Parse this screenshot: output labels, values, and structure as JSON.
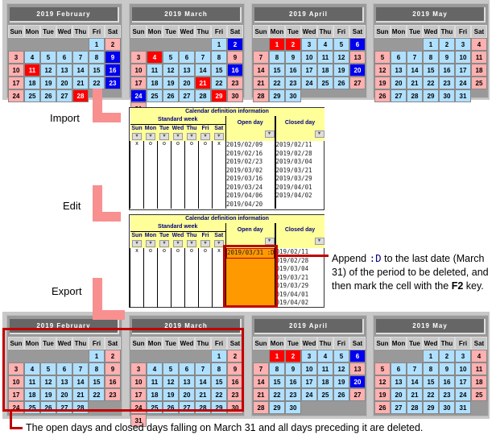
{
  "calendar": {
    "weekdays": [
      "Sun",
      "Mon",
      "Tue",
      "Wed",
      "Thu",
      "Fri",
      "Sat"
    ],
    "colors": {
      "weekday": "#b0e0ff",
      "weekend": "#ffb0b0",
      "closed": "#ff0000",
      "open": "#0000ee"
    },
    "before": [
      {
        "title": "2019 February",
        "first_weekday": 5,
        "days": 28,
        "closed": [
          11,
          28
        ],
        "open": [
          9,
          16,
          23
        ]
      },
      {
        "title": "2019 March",
        "first_weekday": 5,
        "days": 31,
        "closed": [
          4,
          21,
          29
        ],
        "open": [
          2,
          16,
          24
        ]
      },
      {
        "title": "2019 April",
        "first_weekday": 1,
        "days": 30,
        "closed": [
          1,
          2
        ],
        "open": [
          6,
          20
        ]
      },
      {
        "title": "2019 May",
        "first_weekday": 3,
        "days": 31,
        "closed": [],
        "open": []
      }
    ],
    "after": [
      {
        "title": "2019 February",
        "first_weekday": 5,
        "days": 28,
        "closed": [],
        "open": []
      },
      {
        "title": "2019 March",
        "first_weekday": 5,
        "days": 31,
        "closed": [],
        "open": []
      },
      {
        "title": "2019 April",
        "first_weekday": 1,
        "days": 30,
        "closed": [
          1,
          2
        ],
        "open": [
          6,
          20
        ]
      },
      {
        "title": "2019 May",
        "first_weekday": 3,
        "days": 31,
        "closed": [],
        "open": []
      }
    ]
  },
  "steps": {
    "import": "Import",
    "edit": "Edit",
    "export": "Export"
  },
  "sheet": {
    "title": "Calendar definition information",
    "standard_week": "Standard week",
    "open_day": "Open day",
    "closed_day": "Closed day",
    "week_values": [
      "x",
      "o",
      "o",
      "o",
      "o",
      "o",
      "x"
    ],
    "open_days": [
      "2019/02/09",
      "2019/02/16",
      "2019/02/23",
      "2019/03/02",
      "2019/03/16",
      "2019/03/24",
      "2019/04/06",
      "2019/04/20"
    ],
    "closed_days": [
      "2019/02/11",
      "2019/02/28",
      "2019/03/04",
      "2019/03/21",
      "2019/03/29",
      "2019/04/01",
      "2019/04/02"
    ],
    "edited_open_day": "2019/03/31 :D",
    "edited_closed_days": [
      "019/02/11",
      "019/02/28",
      "019/03/04",
      "019/03/21",
      "019/03/29",
      "019/04/01",
      "019/04/02"
    ]
  },
  "note": {
    "part1": "Append ",
    "code": ":D",
    "part2": " to the last date (March 31) of the period to be deleted, and then mark the cell with the ",
    "key": "F2",
    "part3": " key."
  },
  "footer": "The open days and closed days falling on March 31 and all days preceding it are deleted."
}
